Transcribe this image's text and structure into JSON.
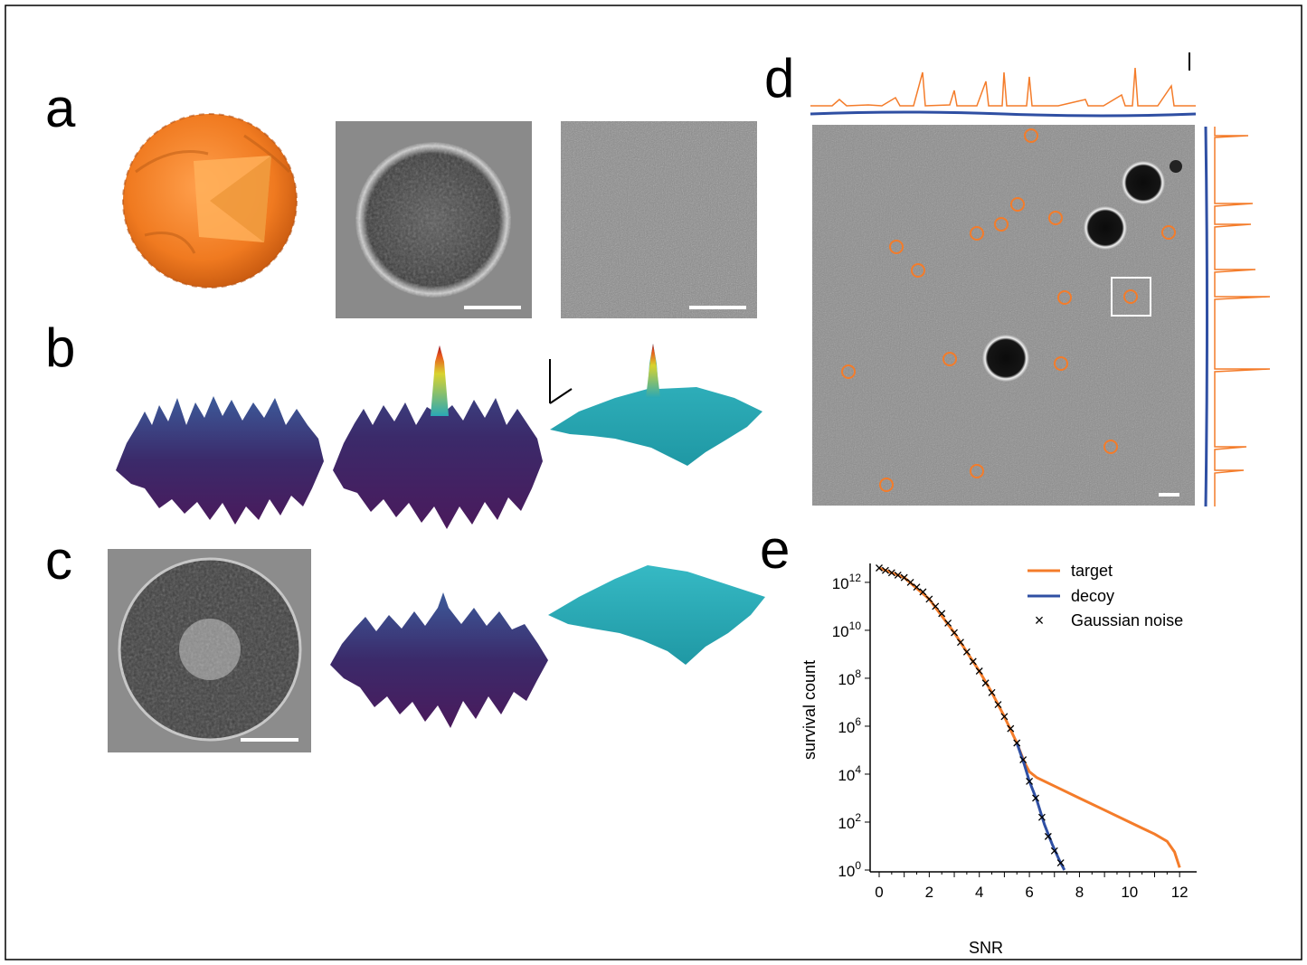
{
  "panels": {
    "a": "a",
    "b": "b",
    "c": "c",
    "d": "d",
    "e": "e"
  },
  "colors": {
    "target": "#f47c2a",
    "decoy": "#2f4fa3",
    "surface_low": "#3d1f5c",
    "surface_mid": "#2aa9b5",
    "gaussian": "#000000",
    "micrograph": "#8c8c8c"
  },
  "chart_data": {
    "type": "line",
    "xlabel": "SNR",
    "ylabel": "survival count",
    "xlim": [
      0,
      12.5
    ],
    "ylim_log10": [
      0,
      12.6
    ],
    "x_ticks": [
      0,
      2,
      4,
      6,
      8,
      10,
      12
    ],
    "y_ticks": [
      {
        "base": "10",
        "exp": "0"
      },
      {
        "base": "10",
        "exp": "2"
      },
      {
        "base": "10",
        "exp": "4"
      },
      {
        "base": "10",
        "exp": "6"
      },
      {
        "base": "10",
        "exp": "8"
      },
      {
        "base": "10",
        "exp": "10"
      },
      {
        "base": "10",
        "exp": "12"
      }
    ],
    "y_scale": "log",
    "legend_position": "top-right",
    "series": [
      {
        "name": "target",
        "style": "line",
        "x": [
          0,
          1,
          2,
          3,
          4,
          4.5,
          5,
          5.5,
          5.8,
          6.0,
          6.3,
          7,
          8,
          9,
          10,
          10.5,
          11,
          11.5,
          11.8,
          12.0
        ],
        "log10_y": [
          12.6,
          12.2,
          11.3,
          9.9,
          8.3,
          7.4,
          6.4,
          5.3,
          4.5,
          4.1,
          3.85,
          3.5,
          3.0,
          2.5,
          2.0,
          1.75,
          1.5,
          1.2,
          0.75,
          0.1
        ]
      },
      {
        "name": "decoy",
        "style": "line",
        "x": [
          5.5,
          5.8,
          6.0,
          6.3,
          6.6,
          6.9,
          7.2,
          7.4
        ],
        "log10_y": [
          5.3,
          4.4,
          3.7,
          2.9,
          1.9,
          1.1,
          0.4,
          0.0
        ]
      },
      {
        "name": "Gaussian noise",
        "style": "markers",
        "x": [
          0,
          0.25,
          0.5,
          0.75,
          1,
          1.25,
          1.5,
          1.75,
          2,
          2.25,
          2.5,
          2.75,
          3,
          3.25,
          3.5,
          3.75,
          4,
          4.25,
          4.5,
          4.75,
          5,
          5.25,
          5.5,
          5.75,
          6,
          6.25,
          6.5,
          6.75,
          7,
          7.25
        ],
        "log10_y": [
          12.6,
          12.5,
          12.4,
          12.3,
          12.2,
          12.0,
          11.8,
          11.6,
          11.3,
          11.0,
          10.7,
          10.3,
          9.9,
          9.5,
          9.1,
          8.7,
          8.3,
          7.8,
          7.4,
          6.9,
          6.4,
          5.9,
          5.3,
          4.6,
          3.7,
          3.0,
          2.2,
          1.4,
          0.8,
          0.3
        ]
      }
    ]
  }
}
